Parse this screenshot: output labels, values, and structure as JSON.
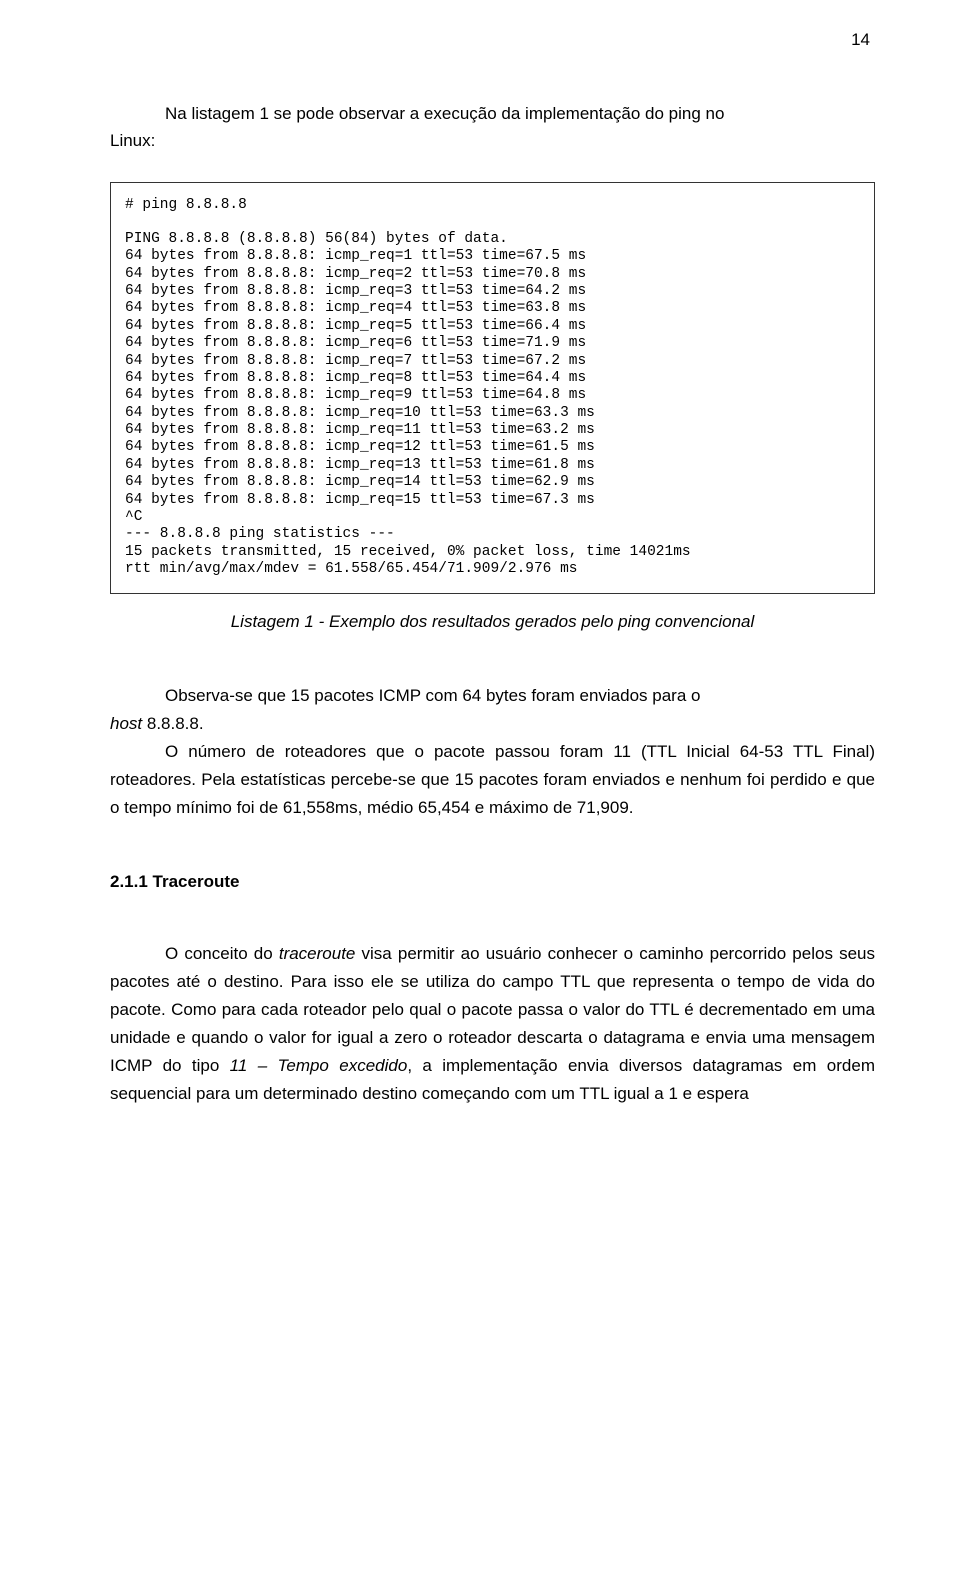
{
  "page_number": "14",
  "intro": {
    "line1": "Na listagem 1 se pode observar a execução da implementação do ping no",
    "linux": "Linux:"
  },
  "code": {
    "font_family": "Courier New",
    "font_size": 14.5,
    "border_color": "#333333",
    "background_color": "#ffffff",
    "line_cmd": "# ping 8.8.8.8",
    "line_header": "PING 8.8.8.8 (8.8.8.8) 56(84) bytes of data.",
    "lines": [
      "64 bytes from 8.8.8.8: icmp_req=1 ttl=53 time=67.5 ms",
      "64 bytes from 8.8.8.8: icmp_req=2 ttl=53 time=70.8 ms",
      "64 bytes from 8.8.8.8: icmp_req=3 ttl=53 time=64.2 ms",
      "64 bytes from 8.8.8.8: icmp_req=4 ttl=53 time=63.8 ms",
      "64 bytes from 8.8.8.8: icmp_req=5 ttl=53 time=66.4 ms",
      "64 bytes from 8.8.8.8: icmp_req=6 ttl=53 time=71.9 ms",
      "64 bytes from 8.8.8.8: icmp_req=7 ttl=53 time=67.2 ms",
      "64 bytes from 8.8.8.8: icmp_req=8 ttl=53 time=64.4 ms",
      "64 bytes from 8.8.8.8: icmp_req=9 ttl=53 time=64.8 ms",
      "64 bytes from 8.8.8.8: icmp_req=10 ttl=53 time=63.3 ms",
      "64 bytes from 8.8.8.8: icmp_req=11 ttl=53 time=63.2 ms",
      "64 bytes from 8.8.8.8: icmp_req=12 ttl=53 time=61.5 ms",
      "64 bytes from 8.8.8.8: icmp_req=13 ttl=53 time=61.8 ms",
      "64 bytes from 8.8.8.8: icmp_req=14 ttl=53 time=62.9 ms",
      "64 bytes from 8.8.8.8: icmp_req=15 ttl=53 time=67.3 ms"
    ],
    "ctrl_c": "^C",
    "stats_header": "--- 8.8.8.8 ping statistics ---",
    "stats_line1": "15 packets transmitted, 15 received, 0% packet loss, time 14021ms",
    "stats_line2": "rtt min/avg/max/mdev = 61.558/65.454/71.909/2.976 ms"
  },
  "caption": "Listagem 1 - Exemplo dos resultados gerados pelo ping convencional",
  "para1_part1": "Observa-se que 15 pacotes ICMP com 64 bytes foram enviados para o",
  "para1_host_prefix": "host",
  "para1_host_suffix": " 8.8.8.8.",
  "para2": "O número de roteadores que o pacote passou foram 11 (TTL Inicial 64-53 TTL Final) roteadores. Pela estatísticas percebe-se que 15 pacotes foram enviados e nenhum foi perdido e que o tempo mínimo foi de  61,558ms, médio 65,454 e máximo de 71,909.",
  "section_header": "2.1.1 Traceroute",
  "para3_part1": "O conceito do ",
  "para3_italic": "traceroute",
  "para3_part2": " visa permitir ao usuário conhecer o caminho percorrido pelos seus pacotes até o destino. Para isso ele se utiliza do campo TTL que representa o tempo de vida do pacote. Como para cada roteador pelo qual o pacote passa o valor do TTL é decrementado em uma unidade e quando o valor for igual a zero o roteador descarta o datagrama e envia uma mensagem ICMP do tipo ",
  "para3_italic2": "11 – Tempo excedido",
  "para3_part3": ", a implementação envia diversos datagramas em ordem sequencial para um determinado destino começando com um TTL igual a 1 e espera",
  "colors": {
    "text": "#000000",
    "background": "#ffffff"
  }
}
